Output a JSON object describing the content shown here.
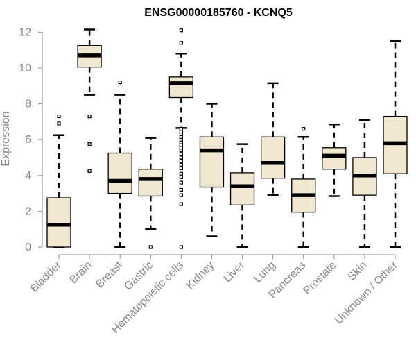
{
  "chart_data": {
    "type": "box",
    "title": "ENSG00000185760 - KCNQ5",
    "xlabel": "",
    "ylabel": "Expression",
    "ylim": [
      0,
      12.4
    ],
    "yticks": [
      0,
      2,
      4,
      6,
      8,
      10,
      12
    ],
    "box_fill": "#efe7cf",
    "categories": [
      "Bladder",
      "Brain",
      "Breast",
      "Gastric",
      "Hematopoietic cells",
      "Kidney",
      "Liver",
      "Lung",
      "Pancreas",
      "Prostate",
      "Skin",
      "Unknown / Other"
    ],
    "boxes": [
      {
        "category": "Bladder",
        "whisker_low": 0.0,
        "q1": 0.0,
        "median": 1.25,
        "q3": 2.75,
        "whisker_high": 6.25,
        "outliers": [
          6.9,
          7.3
        ]
      },
      {
        "category": "Brain",
        "whisker_low": 8.5,
        "q1": 10.05,
        "median": 10.7,
        "q3": 11.25,
        "whisker_high": 12.15,
        "outliers": [
          4.25,
          5.75,
          7.3
        ]
      },
      {
        "category": "Breast",
        "whisker_low": 0.0,
        "q1": 3.0,
        "median": 3.7,
        "q3": 5.25,
        "whisker_high": 8.5,
        "outliers": [
          9.2
        ]
      },
      {
        "category": "Gastric",
        "whisker_low": 1.0,
        "q1": 2.85,
        "median": 3.8,
        "q3": 4.35,
        "whisker_high": 6.1,
        "outliers": [
          0.0
        ]
      },
      {
        "category": "Hematopoietic cells",
        "whisker_low": 6.65,
        "q1": 8.35,
        "median": 9.15,
        "q3": 9.5,
        "whisker_high": 10.8,
        "outliers": [
          0.0,
          2.4,
          2.9,
          3.2,
          3.6,
          3.9,
          4.1,
          4.4,
          4.6,
          4.8,
          5.0,
          5.2,
          5.4,
          5.55,
          5.7,
          5.85,
          6.0,
          6.15,
          6.3,
          6.45,
          6.6,
          11.4,
          12.1
        ]
      },
      {
        "category": "Kidney",
        "whisker_low": 0.6,
        "q1": 3.35,
        "median": 5.4,
        "q3": 6.15,
        "whisker_high": 8.0,
        "outliers": []
      },
      {
        "category": "Liver",
        "whisker_low": 0.0,
        "q1": 2.35,
        "median": 3.4,
        "q3": 4.15,
        "whisker_high": 5.75,
        "outliers": []
      },
      {
        "category": "Lung",
        "whisker_low": 2.9,
        "q1": 3.85,
        "median": 4.7,
        "q3": 6.15,
        "whisker_high": 9.15,
        "outliers": []
      },
      {
        "category": "Pancreas",
        "whisker_low": 0.0,
        "q1": 1.95,
        "median": 2.9,
        "q3": 3.8,
        "whisker_high": 6.15,
        "outliers": [
          6.6
        ]
      },
      {
        "category": "Prostate",
        "whisker_low": 2.85,
        "q1": 4.35,
        "median": 5.1,
        "q3": 5.55,
        "whisker_high": 6.85,
        "outliers": []
      },
      {
        "category": "Skin",
        "whisker_low": 0.0,
        "q1": 2.9,
        "median": 4.0,
        "q3": 5.0,
        "whisker_high": 7.1,
        "outliers": []
      },
      {
        "category": "Unknown / Other",
        "whisker_low": 0.0,
        "q1": 4.1,
        "median": 5.8,
        "q3": 7.3,
        "whisker_high": 11.5,
        "outliers": []
      }
    ]
  }
}
